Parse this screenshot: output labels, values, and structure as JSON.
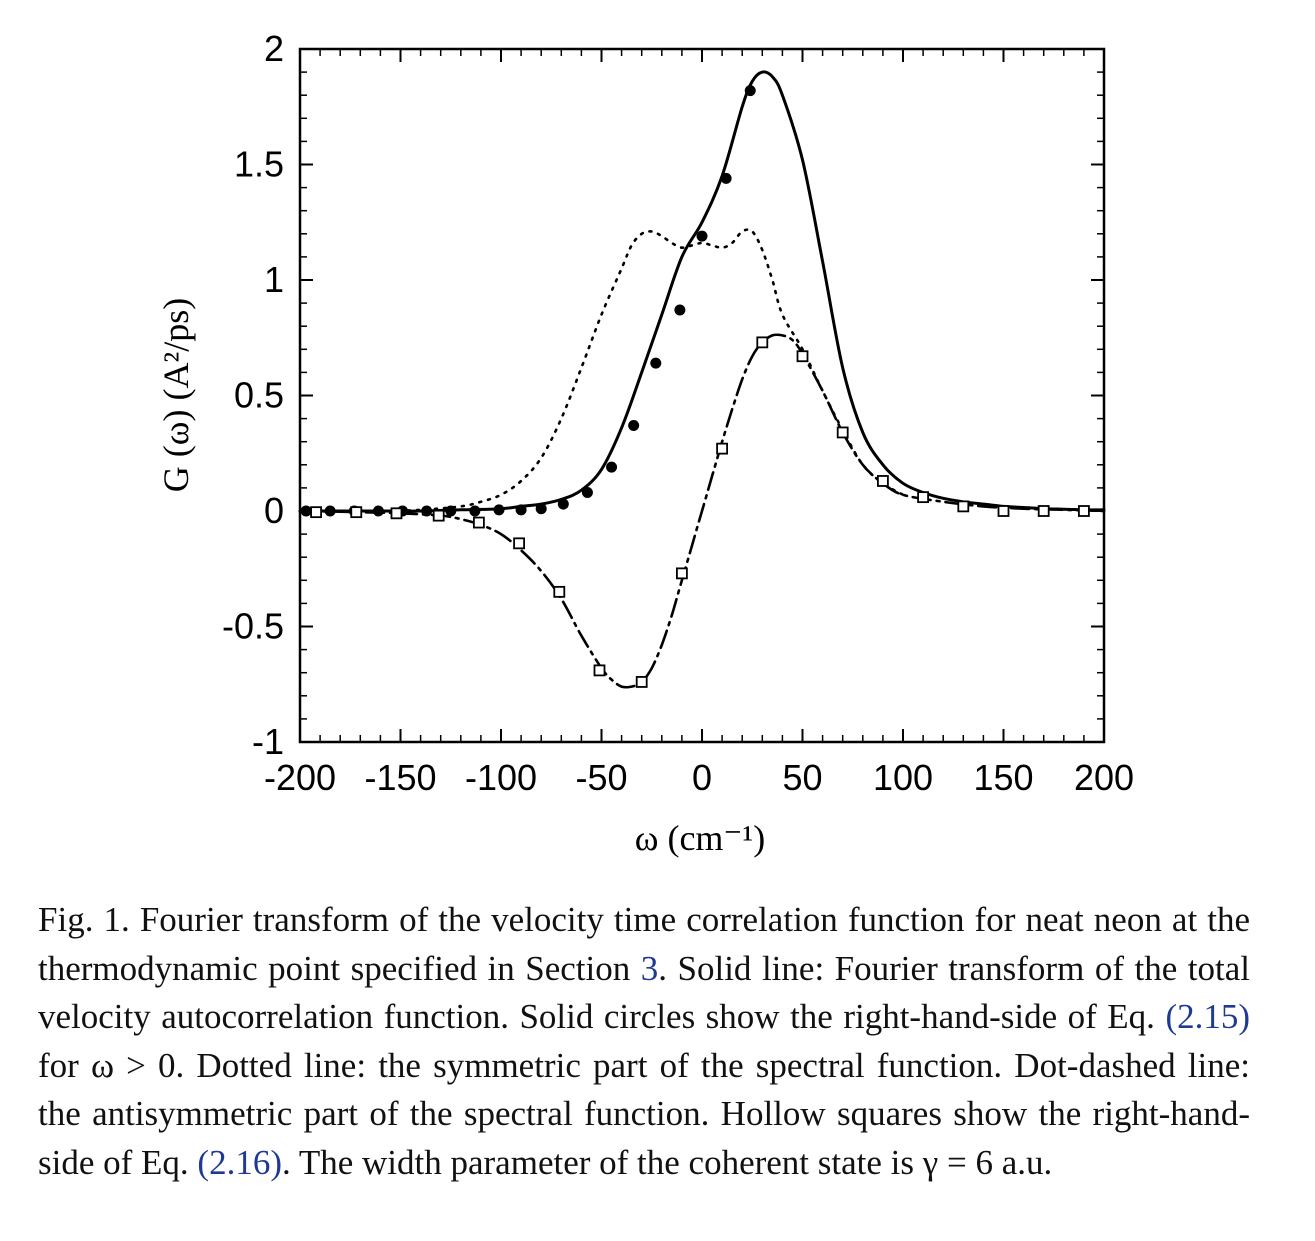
{
  "chart_data": {
    "type": "line",
    "xlabel": "ω (cm⁻¹)",
    "ylabel": "G (ω)  (A²/ps)",
    "xlim": [
      -200,
      200
    ],
    "ylim": [
      -1,
      2
    ],
    "x_ticks": [
      "-200",
      "-150",
      "-100",
      "-50",
      "0",
      "50",
      "100",
      "150",
      "200"
    ],
    "y_ticks": [
      "-1",
      "-0.5",
      "0",
      "0.5",
      "1",
      "1.5",
      "2"
    ],
    "grid": false,
    "series": [
      {
        "style": "solid",
        "color": "#000000",
        "x": [
          -200,
          -180,
          -160,
          -140,
          -120,
          -100,
          -90,
          -80,
          -70,
          -60,
          -50,
          -40,
          -30,
          -20,
          -10,
          0,
          10,
          20,
          25,
          30,
          35,
          40,
          50,
          60,
          70,
          80,
          90,
          100,
          110,
          120,
          130,
          140,
          150,
          160,
          170,
          180,
          190,
          200
        ],
        "y": [
          0,
          0,
          0,
          0,
          0.005,
          0.01,
          0.02,
          0.03,
          0.05,
          0.09,
          0.18,
          0.36,
          0.6,
          0.85,
          1.1,
          1.25,
          1.45,
          1.75,
          1.86,
          1.9,
          1.88,
          1.8,
          1.52,
          1.08,
          0.62,
          0.34,
          0.2,
          0.12,
          0.08,
          0.055,
          0.04,
          0.03,
          0.02,
          0.015,
          0.01,
          0.008,
          0.005,
          0.005
        ]
      },
      {
        "style": "dotted",
        "color": "#000000",
        "x": [
          -200,
          -160,
          -140,
          -120,
          -110,
          -100,
          -90,
          -80,
          -70,
          -60,
          -50,
          -40,
          -35,
          -30,
          -25,
          -20,
          -15,
          -10,
          -5,
          0,
          5,
          10,
          15,
          20,
          25,
          30,
          35,
          40,
          50,
          60,
          70,
          80,
          90,
          100
        ],
        "y": [
          0,
          0,
          0.005,
          0.02,
          0.04,
          0.07,
          0.13,
          0.23,
          0.4,
          0.62,
          0.85,
          1.05,
          1.15,
          1.2,
          1.21,
          1.19,
          1.16,
          1.14,
          1.15,
          1.16,
          1.15,
          1.14,
          1.16,
          1.21,
          1.21,
          1.13,
          1.0,
          0.85,
          0.7,
          0.52,
          0.35,
          0.2,
          0.12,
          0.07
        ]
      },
      {
        "style": "dot-dashed",
        "color": "#000000",
        "x": [
          -200,
          -170,
          -150,
          -130,
          -120,
          -110,
          -100,
          -90,
          -80,
          -70,
          -60,
          -50,
          -45,
          -40,
          -35,
          -30,
          -25,
          -20,
          -15,
          -10,
          -5,
          0,
          5,
          10,
          15,
          20,
          25,
          30,
          35,
          40,
          45,
          50,
          60,
          70,
          80,
          90,
          100,
          120,
          140,
          160,
          180,
          200
        ],
        "y": [
          0,
          -0.005,
          -0.01,
          -0.02,
          -0.035,
          -0.06,
          -0.1,
          -0.17,
          -0.26,
          -0.38,
          -0.54,
          -0.68,
          -0.73,
          -0.76,
          -0.76,
          -0.74,
          -0.68,
          -0.58,
          -0.45,
          -0.3,
          -0.15,
          0.0,
          0.15,
          0.3,
          0.44,
          0.57,
          0.67,
          0.73,
          0.76,
          0.76,
          0.74,
          0.68,
          0.52,
          0.34,
          0.2,
          0.12,
          0.07,
          0.04,
          0.02,
          0.01,
          0.005,
          0
        ]
      }
    ],
    "markers": [
      {
        "shape": "filled-circle",
        "x": [
          -197,
          -185,
          -173,
          -161,
          -149,
          -137,
          -125,
          -113,
          -101,
          -90,
          -80,
          -69,
          -57,
          -45,
          -34,
          -23,
          -11,
          0,
          12,
          24
        ],
        "y": [
          0,
          0,
          0,
          0,
          0,
          0,
          0,
          0,
          0.005,
          0.005,
          0.01,
          0.03,
          0.08,
          0.19,
          0.37,
          0.64,
          0.87,
          1.19,
          1.44,
          1.82
        ]
      },
      {
        "shape": "hollow-square",
        "x": [
          -192,
          -172,
          -152,
          -131,
          -111,
          -91,
          -71,
          -51,
          -30,
          -10,
          10,
          30,
          50,
          70,
          90,
          110,
          130,
          150,
          170,
          190
        ],
        "y": [
          -0.005,
          -0.005,
          -0.01,
          -0.02,
          -0.05,
          -0.14,
          -0.35,
          -0.69,
          -0.74,
          -0.27,
          0.27,
          0.73,
          0.67,
          0.34,
          0.13,
          0.06,
          0.02,
          0.0,
          0.0,
          0.0
        ]
      }
    ]
  },
  "caption": {
    "p1": "Fig. 1.  Fourier transform of the velocity time correlation function for neat neon at the thermodynamic point specified in Section ",
    "ref1": "3",
    "p2": ". Solid line: Fourier transform of the total velocity autocorrelation function. Solid circles show the right-hand-side of Eq. ",
    "ref2": "(2.15)",
    "p3": " for ω > 0. Dotted line: the symmetric part of the spectral function. Dot-dashed line: the antisymmetric part of the spectral function. Hollow squares show the right-hand-side of Eq. ",
    "ref3": "(2.16)",
    "p4": ". The width parameter of the coherent state is γ = 6 a.u."
  }
}
